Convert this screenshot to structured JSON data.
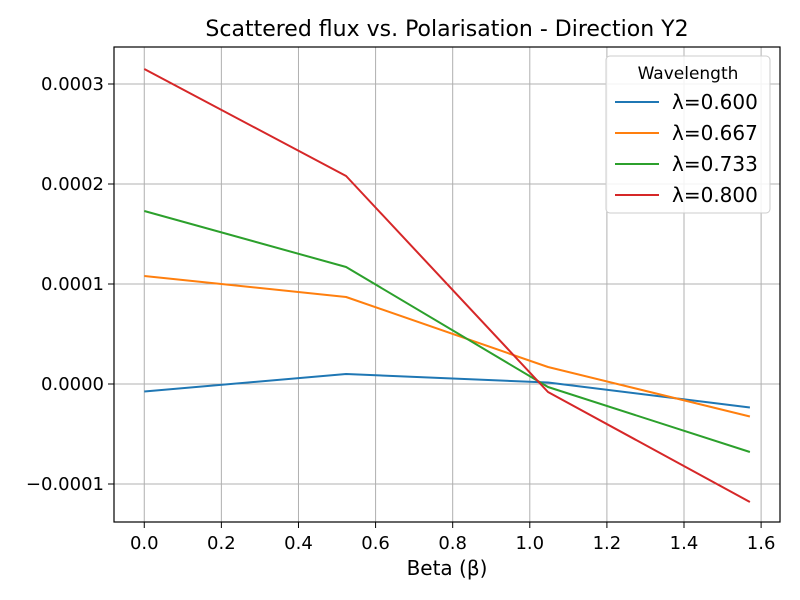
{
  "chart_data": {
    "type": "line",
    "title": "Scattered flux vs. Polarisation - Direction Y2",
    "xlabel": "Beta (β)",
    "ylabel": "",
    "xlim": [
      -0.0785,
      1.649
    ],
    "ylim": [
      -0.000138,
      0.000337
    ],
    "xticks": [
      0.0,
      0.2,
      0.4,
      0.6,
      0.8,
      1.0,
      1.2,
      1.4,
      1.6
    ],
    "xtick_labels": [
      "0.0",
      "0.2",
      "0.4",
      "0.6",
      "0.8",
      "1.0",
      "1.2",
      "1.4",
      "1.6"
    ],
    "yticks": [
      -0.0001,
      0.0,
      0.0001,
      0.0002,
      0.0003
    ],
    "ytick_labels": [
      "−0.0001",
      "0.0000",
      "0.0001",
      "0.0002",
      "0.0003"
    ],
    "grid": true,
    "legend": {
      "title": "Wavelength",
      "position": "top-right"
    },
    "x": [
      0.0,
      0.5236,
      1.0472,
      1.5708
    ],
    "series": [
      {
        "name": "λ=0.600",
        "color": "#1f77b4",
        "values": [
          -7.5e-06,
          1e-05,
          1.5e-06,
          -2.35e-05
        ]
      },
      {
        "name": "λ=0.667",
        "color": "#ff7f0e",
        "values": [
          0.000108,
          8.7e-05,
          1.7e-05,
          -3.25e-05
        ]
      },
      {
        "name": "λ=0.733",
        "color": "#2ca02c",
        "values": [
          0.000173,
          0.000117,
          -3e-06,
          -6.8e-05
        ]
      },
      {
        "name": "λ=0.800",
        "color": "#d62728",
        "values": [
          0.000315,
          0.000208,
          -8e-06,
          -0.000118
        ]
      }
    ]
  }
}
